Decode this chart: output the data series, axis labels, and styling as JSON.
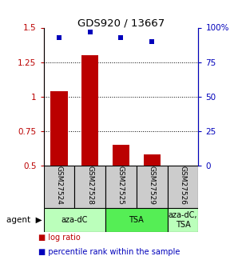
{
  "title": "GDS920 / 13667",
  "samples": [
    "GSM27524",
    "GSM27528",
    "GSM27525",
    "GSM27529",
    "GSM27526"
  ],
  "log_ratios": [
    1.04,
    1.3,
    0.65,
    0.58,
    0.5
  ],
  "percentile_ranks": [
    93,
    97,
    93,
    90,
    null
  ],
  "bar_color": "#bb0000",
  "square_color": "#0000bb",
  "ylim_left": [
    0.5,
    1.5
  ],
  "ylim_right": [
    0,
    100
  ],
  "yticks_left": [
    0.5,
    0.75,
    1.0,
    1.25,
    1.5
  ],
  "ytick_labels_left": [
    "0.5",
    "0.75",
    "1",
    "1.25",
    "1.5"
  ],
  "yticks_right": [
    0,
    25,
    50,
    75,
    100
  ],
  "ytick_labels_right": [
    "0",
    "25",
    "50",
    "75",
    "100%"
  ],
  "hlines": [
    0.75,
    1.0,
    1.25
  ],
  "agent_groups": [
    {
      "label": "aza-dC",
      "indices": [
        0,
        1
      ],
      "color": "#bbffbb"
    },
    {
      "label": "TSA",
      "indices": [
        2,
        3
      ],
      "color": "#55ee55"
    },
    {
      "label": "aza-dC,\nTSA",
      "indices": [
        4
      ],
      "color": "#bbffbb"
    }
  ],
  "legend_items": [
    {
      "color": "#bb0000",
      "label": " log ratio"
    },
    {
      "color": "#0000bb",
      "label": " percentile rank within the sample"
    }
  ],
  "agent_label": "agent",
  "bar_width": 0.55,
  "tick_label_color_left": "#bb0000",
  "tick_label_color_right": "#0000bb",
  "sample_box_color": "#cccccc",
  "fig_width": 3.03,
  "fig_height": 3.45,
  "dpi": 100
}
